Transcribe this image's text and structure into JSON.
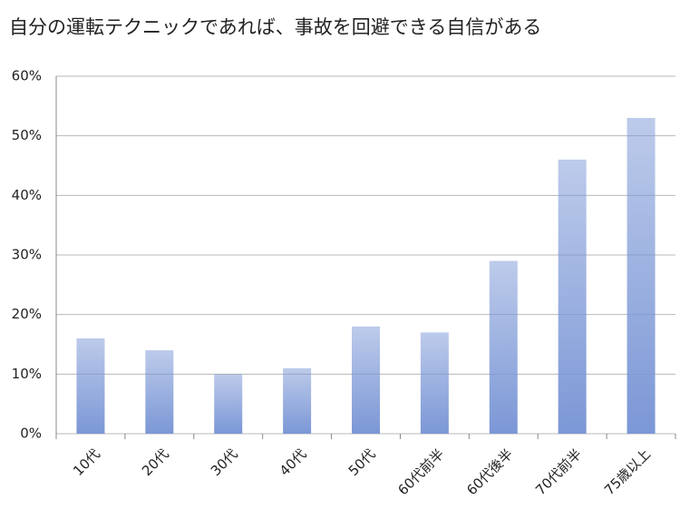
{
  "chart_data": {
    "type": "bar",
    "title": "自分の運転テクニックであれば、事故を回避できる自信がある",
    "categories": [
      "10代",
      "20代",
      "30代",
      "40代",
      "50代",
      "60代前半",
      "60代後半",
      "70代前半",
      "75歳以上"
    ],
    "values": [
      16,
      14,
      10,
      11,
      18,
      17,
      29,
      46,
      53
    ],
    "color": "#7b97d6",
    "ylim": [
      0,
      60
    ],
    "yticks": [
      {
        "value": 0,
        "label": "0%"
      },
      {
        "value": 10,
        "label": "10%"
      },
      {
        "value": 20,
        "label": "20%"
      },
      {
        "value": 30,
        "label": "30%"
      },
      {
        "value": 40,
        "label": "40%"
      },
      {
        "value": 50,
        "label": "50%"
      },
      {
        "value": 60,
        "label": "60%"
      }
    ],
    "grid": true
  }
}
